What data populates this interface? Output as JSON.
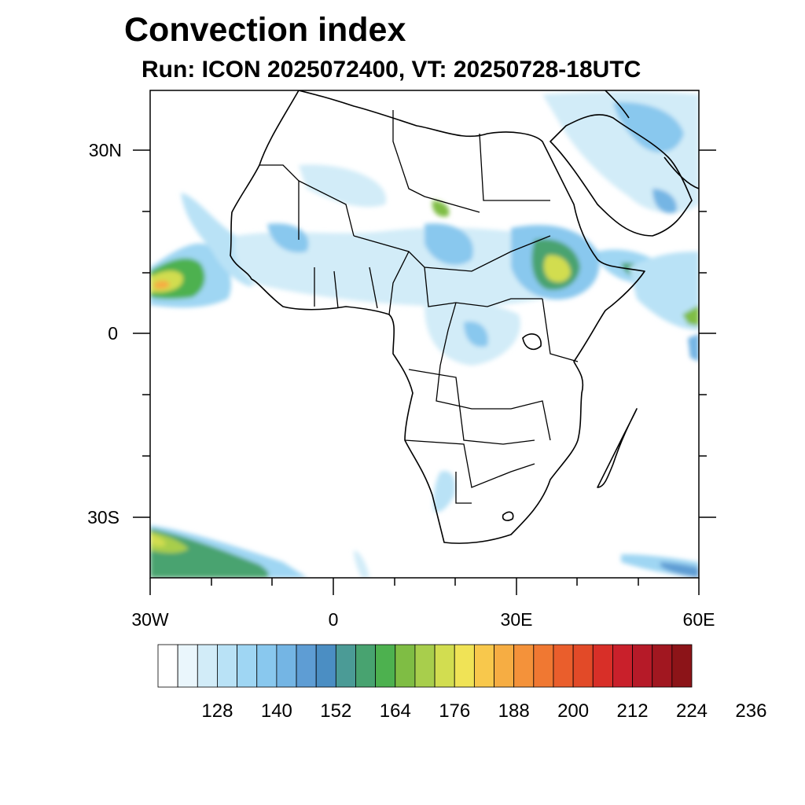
{
  "title": "Convection index",
  "subtitle": "Run: ICON 2025072400,  VT: 20250728-18UTC",
  "lat_labels": [
    "30N",
    "0",
    "30S"
  ],
  "lon_labels": [
    "30W",
    "0",
    "30E",
    "60E"
  ],
  "colorbar": {
    "labels": [
      "128",
      "140",
      "152",
      "164",
      "176",
      "188",
      "200",
      "212",
      "224",
      "236"
    ],
    "colors": [
      "#ffffff",
      "#eaf6fc",
      "#d2ecf8",
      "#b9e2f6",
      "#9fd6f3",
      "#89c8ee",
      "#74b5e4",
      "#5e9dd4",
      "#4b8ec3",
      "#4b9b96",
      "#48a370",
      "#4db14f",
      "#7fbd44",
      "#a8ce4c",
      "#d2dd50",
      "#f0e356",
      "#f8c84c",
      "#f6ad43",
      "#f4923a",
      "#f07832",
      "#ea5e2c",
      "#e24a28",
      "#d82f28",
      "#c9202b",
      "#b61a28",
      "#a11720",
      "#8c1418"
    ]
  },
  "colors": {
    "land_outline": "#000000",
    "ocean": "#ffffff"
  }
}
